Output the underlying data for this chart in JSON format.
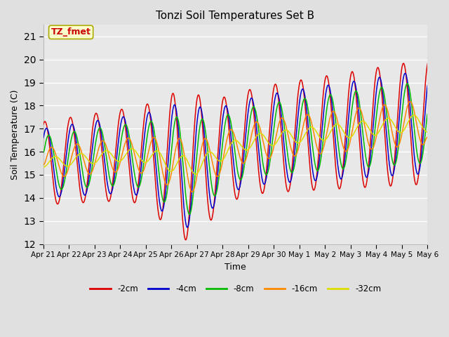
{
  "title": "Tonzi Soil Temperatures Set B",
  "xlabel": "Time",
  "ylabel": "Soil Temperature (C)",
  "ylim": [
    12.0,
    21.5
  ],
  "yticks": [
    12.0,
    13.0,
    14.0,
    15.0,
    16.0,
    17.0,
    18.0,
    19.0,
    20.0,
    21.0
  ],
  "background_color": "#e0e0e0",
  "plot_bg_color": "#e8e8e8",
  "grid_color": "#ffffff",
  "annotation_text": "TZ_fmet",
  "annotation_color": "#cc0000",
  "annotation_bg": "#ffffcc",
  "annotation_border": "#aaaa00",
  "series": [
    {
      "label": "-2cm",
      "color": "#dd0000"
    },
    {
      "label": "-4cm",
      "color": "#0000cc"
    },
    {
      "label": "-8cm",
      "color": "#00bb00"
    },
    {
      "label": "-16cm",
      "color": "#ff8800"
    },
    {
      "label": "-32cm",
      "color": "#dddd00"
    }
  ],
  "x_tick_labels": [
    "Apr 21",
    "Apr 22",
    "Apr 23",
    "Apr 24",
    "Apr 25",
    "Apr 26",
    "Apr 27",
    "Apr 28",
    "Apr 29",
    "Apr 30",
    "May 1",
    "May 2",
    "May 3",
    "May 4",
    "May 5",
    "May 6"
  ],
  "figwidth": 6.4,
  "figheight": 4.8,
  "dpi": 100
}
